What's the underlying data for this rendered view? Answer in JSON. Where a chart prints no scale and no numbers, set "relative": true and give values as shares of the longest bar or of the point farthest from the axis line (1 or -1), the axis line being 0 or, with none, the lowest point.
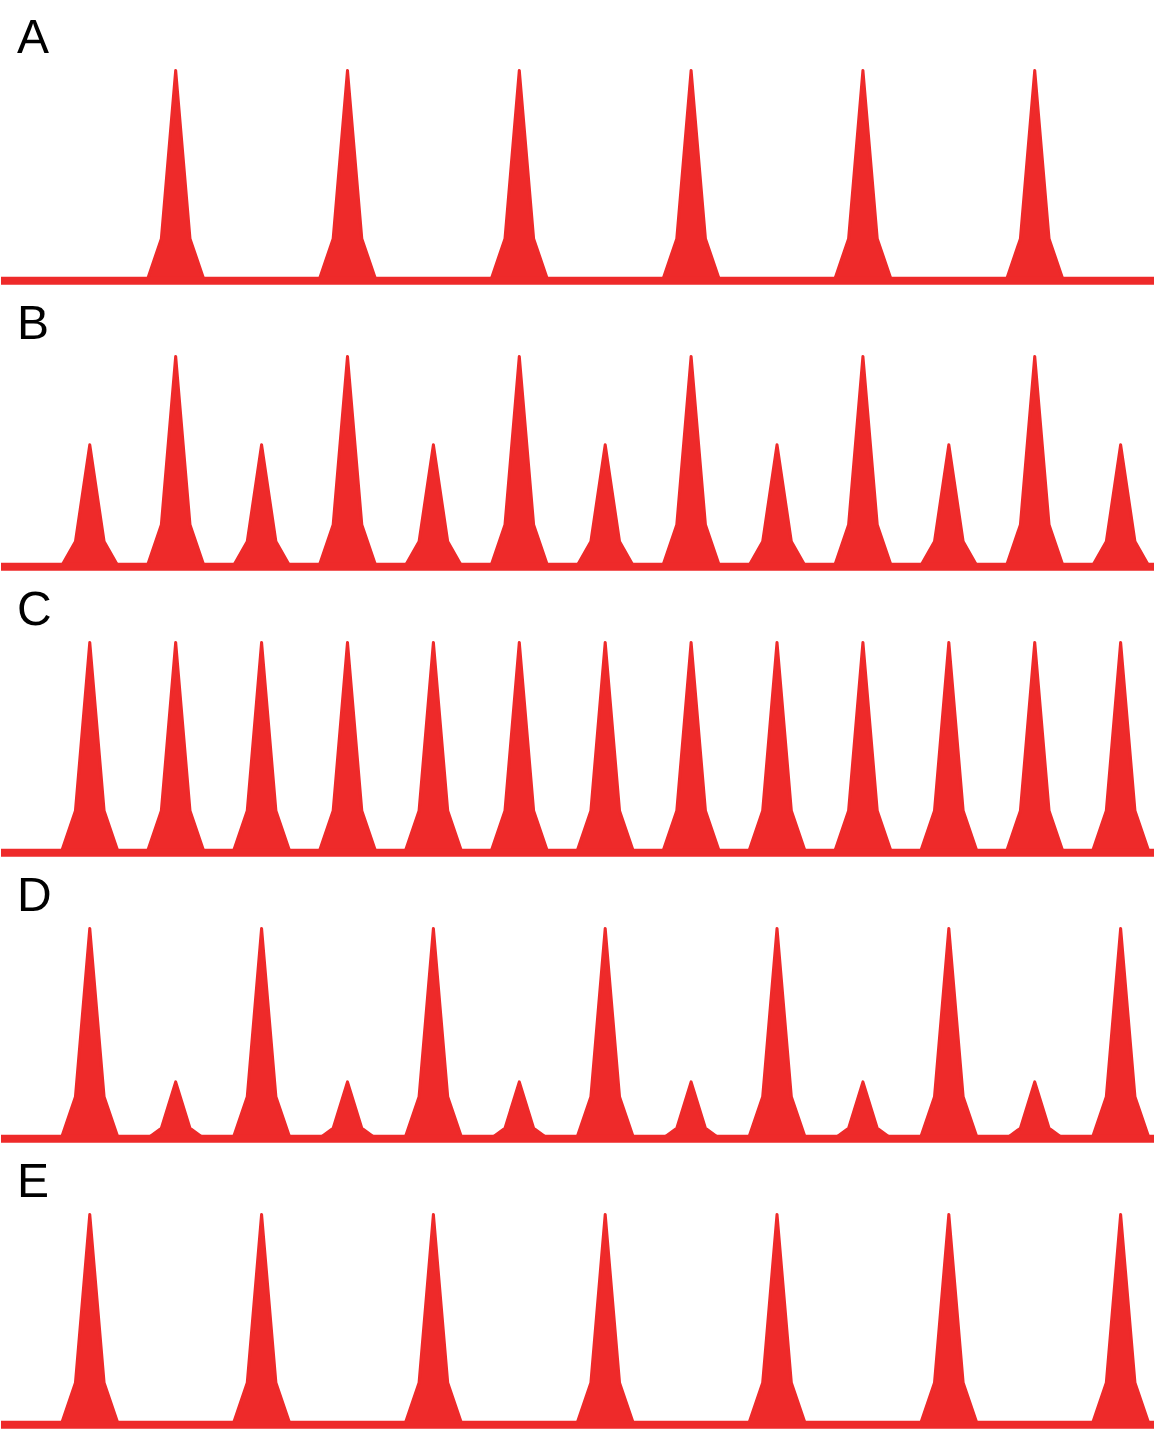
{
  "chart_data": [
    {
      "type": "area",
      "title": "A",
      "relative": true,
      "categories": [
        null,
        null,
        null,
        null,
        null,
        null,
        null,
        null,
        null,
        null,
        null,
        null,
        null,
        null,
        null,
        null,
        null,
        null,
        null,
        null,
        null,
        null,
        null,
        null,
        null,
        null,
        null,
        null,
        null,
        null,
        null,
        null,
        null,
        null,
        null,
        null,
        null,
        null,
        null,
        null,
        null,
        null,
        null,
        null,
        null,
        null,
        null,
        null,
        null,
        null,
        null,
        null,
        null,
        null,
        null,
        null,
        null,
        null,
        null,
        null,
        null,
        null,
        null,
        null,
        null,
        null,
        null,
        null,
        null,
        null,
        null,
        null,
        null,
        null,
        null,
        null,
        null,
        null,
        null,
        null,
        null
      ],
      "series": [
        {
          "color": "#ee2a2a",
          "values": [
            0,
            0,
            0,
            0,
            0,
            0,
            0,
            0,
            0,
            0,
            0,
            0.2,
            1,
            0.2,
            0,
            0,
            0,
            0,
            0,
            0,
            0,
            0,
            0,
            0.2,
            1,
            0.2,
            0,
            0,
            0,
            0,
            0,
            0,
            0,
            0,
            0,
            0.2,
            1,
            0.2,
            0,
            0,
            0,
            0,
            0,
            0,
            0,
            0,
            0,
            0.2,
            1,
            0.2,
            0,
            0,
            0,
            0,
            0,
            0,
            0,
            0,
            0,
            0.2,
            1,
            0.2,
            0,
            0,
            0,
            0,
            0,
            0,
            0,
            0,
            0,
            0.2,
            1,
            0.2,
            0,
            0,
            0,
            0,
            0,
            0,
            0
          ]
        }
      ]
    },
    {
      "type": "area",
      "title": "B",
      "relative": true,
      "categories": [
        null,
        null,
        null,
        null,
        null,
        null,
        null,
        null,
        null,
        null,
        null,
        null,
        null,
        null,
        null,
        null,
        null,
        null,
        null,
        null,
        null,
        null,
        null,
        null,
        null,
        null,
        null,
        null,
        null,
        null,
        null,
        null,
        null,
        null,
        null,
        null,
        null,
        null,
        null,
        null,
        null,
        null,
        null,
        null,
        null,
        null,
        null,
        null,
        null,
        null,
        null,
        null,
        null,
        null,
        null,
        null,
        null,
        null,
        null,
        null,
        null,
        null,
        null,
        null,
        null,
        null,
        null,
        null,
        null,
        null,
        null,
        null,
        null,
        null,
        null,
        null,
        null,
        null,
        null,
        null,
        null
      ],
      "series": [
        {
          "color": "#ee2a2a",
          "values": [
            0,
            0,
            0,
            0,
            0,
            0.12,
            0.58,
            0.12,
            0,
            0,
            0,
            0.2,
            1,
            0.2,
            0,
            0,
            0,
            0.12,
            0.58,
            0.12,
            0,
            0,
            0,
            0.2,
            1,
            0.2,
            0,
            0,
            0,
            0.12,
            0.58,
            0.12,
            0,
            0,
            0,
            0.2,
            1,
            0.2,
            0,
            0,
            0,
            0.12,
            0.58,
            0.12,
            0,
            0,
            0,
            0.2,
            1,
            0.2,
            0,
            0,
            0,
            0.12,
            0.58,
            0.12,
            0,
            0,
            0,
            0.2,
            1,
            0.2,
            0,
            0,
            0,
            0.12,
            0.58,
            0.12,
            0,
            0,
            0,
            0.2,
            1,
            0.2,
            0,
            0,
            0,
            0.12,
            0.58,
            0.12,
            0
          ]
        }
      ]
    },
    {
      "type": "area",
      "title": "C",
      "relative": true,
      "categories": [
        null,
        null,
        null,
        null,
        null,
        null,
        null,
        null,
        null,
        null,
        null,
        null,
        null,
        null,
        null,
        null,
        null,
        null,
        null,
        null,
        null,
        null,
        null,
        null,
        null,
        null,
        null,
        null,
        null,
        null,
        null,
        null,
        null,
        null,
        null,
        null,
        null,
        null,
        null,
        null,
        null,
        null,
        null,
        null,
        null,
        null,
        null,
        null,
        null,
        null,
        null,
        null,
        null,
        null,
        null,
        null,
        null,
        null,
        null,
        null,
        null,
        null,
        null,
        null,
        null,
        null,
        null,
        null,
        null,
        null,
        null,
        null,
        null,
        null,
        null,
        null,
        null,
        null,
        null,
        null,
        null
      ],
      "series": [
        {
          "color": "#ee2a2a",
          "values": [
            0,
            0,
            0,
            0,
            0,
            0.2,
            1,
            0.2,
            0,
            0,
            0,
            0.2,
            1,
            0.2,
            0,
            0,
            0,
            0.2,
            1,
            0.2,
            0,
            0,
            0,
            0.2,
            1,
            0.2,
            0,
            0,
            0,
            0.2,
            1,
            0.2,
            0,
            0,
            0,
            0.2,
            1,
            0.2,
            0,
            0,
            0,
            0.2,
            1,
            0.2,
            0,
            0,
            0,
            0.2,
            1,
            0.2,
            0,
            0,
            0,
            0.2,
            1,
            0.2,
            0,
            0,
            0,
            0.2,
            1,
            0.2,
            0,
            0,
            0,
            0.2,
            1,
            0.2,
            0,
            0,
            0,
            0.2,
            1,
            0.2,
            0,
            0,
            0,
            0.2,
            1,
            0.2,
            0
          ]
        }
      ]
    },
    {
      "type": "area",
      "title": "D",
      "relative": true,
      "categories": [
        null,
        null,
        null,
        null,
        null,
        null,
        null,
        null,
        null,
        null,
        null,
        null,
        null,
        null,
        null,
        null,
        null,
        null,
        null,
        null,
        null,
        null,
        null,
        null,
        null,
        null,
        null,
        null,
        null,
        null,
        null,
        null,
        null,
        null,
        null,
        null,
        null,
        null,
        null,
        null,
        null,
        null,
        null,
        null,
        null,
        null,
        null,
        null,
        null,
        null,
        null,
        null,
        null,
        null,
        null,
        null,
        null,
        null,
        null,
        null,
        null,
        null,
        null,
        null,
        null,
        null,
        null,
        null,
        null,
        null,
        null,
        null,
        null,
        null,
        null,
        null,
        null,
        null,
        null,
        null,
        null
      ],
      "series": [
        {
          "color": "#ee2a2a",
          "values": [
            0,
            0,
            0,
            0,
            0,
            0.2,
            1,
            0.2,
            0,
            0,
            0,
            0.05,
            0.27,
            0.05,
            0,
            0,
            0,
            0.2,
            1,
            0.2,
            0,
            0,
            0,
            0.05,
            0.27,
            0.05,
            0,
            0,
            0,
            0.2,
            1,
            0.2,
            0,
            0,
            0,
            0.05,
            0.27,
            0.05,
            0,
            0,
            0,
            0.2,
            1,
            0.2,
            0,
            0,
            0,
            0.05,
            0.27,
            0.05,
            0,
            0,
            0,
            0.2,
            1,
            0.2,
            0,
            0,
            0,
            0.05,
            0.27,
            0.05,
            0,
            0,
            0,
            0.2,
            1,
            0.2,
            0,
            0,
            0,
            0.05,
            0.27,
            0.05,
            0,
            0,
            0,
            0.2,
            1,
            0.2,
            0
          ]
        }
      ]
    },
    {
      "type": "area",
      "title": "E",
      "relative": true,
      "categories": [
        null,
        null,
        null,
        null,
        null,
        null,
        null,
        null,
        null,
        null,
        null,
        null,
        null,
        null,
        null,
        null,
        null,
        null,
        null,
        null,
        null,
        null,
        null,
        null,
        null,
        null,
        null,
        null,
        null,
        null,
        null,
        null,
        null,
        null,
        null,
        null,
        null,
        null,
        null,
        null,
        null,
        null,
        null,
        null,
        null,
        null,
        null,
        null,
        null,
        null,
        null,
        null,
        null,
        null,
        null,
        null,
        null,
        null,
        null,
        null,
        null,
        null,
        null,
        null,
        null,
        null,
        null,
        null,
        null,
        null,
        null,
        null,
        null,
        null,
        null,
        null,
        null,
        null,
        null,
        null,
        null
      ],
      "series": [
        {
          "color": "#ee2a2a",
          "values": [
            0,
            0,
            0,
            0,
            0,
            0.2,
            1,
            0.2,
            0,
            0,
            0,
            0,
            0,
            0,
            0,
            0,
            0,
            0.2,
            1,
            0.2,
            0,
            0,
            0,
            0,
            0,
            0,
            0,
            0,
            0,
            0.2,
            1,
            0.2,
            0,
            0,
            0,
            0,
            0,
            0,
            0,
            0,
            0,
            0.2,
            1,
            0.2,
            0,
            0,
            0,
            0,
            0,
            0,
            0,
            0,
            0,
            0.2,
            1,
            0.2,
            0,
            0,
            0,
            0,
            0,
            0,
            0,
            0,
            0,
            0.2,
            1,
            0.2,
            0,
            0,
            0,
            0,
            0,
            0,
            0,
            0,
            0,
            0.2,
            1,
            0.2,
            0
          ]
        }
      ]
    }
  ]
}
